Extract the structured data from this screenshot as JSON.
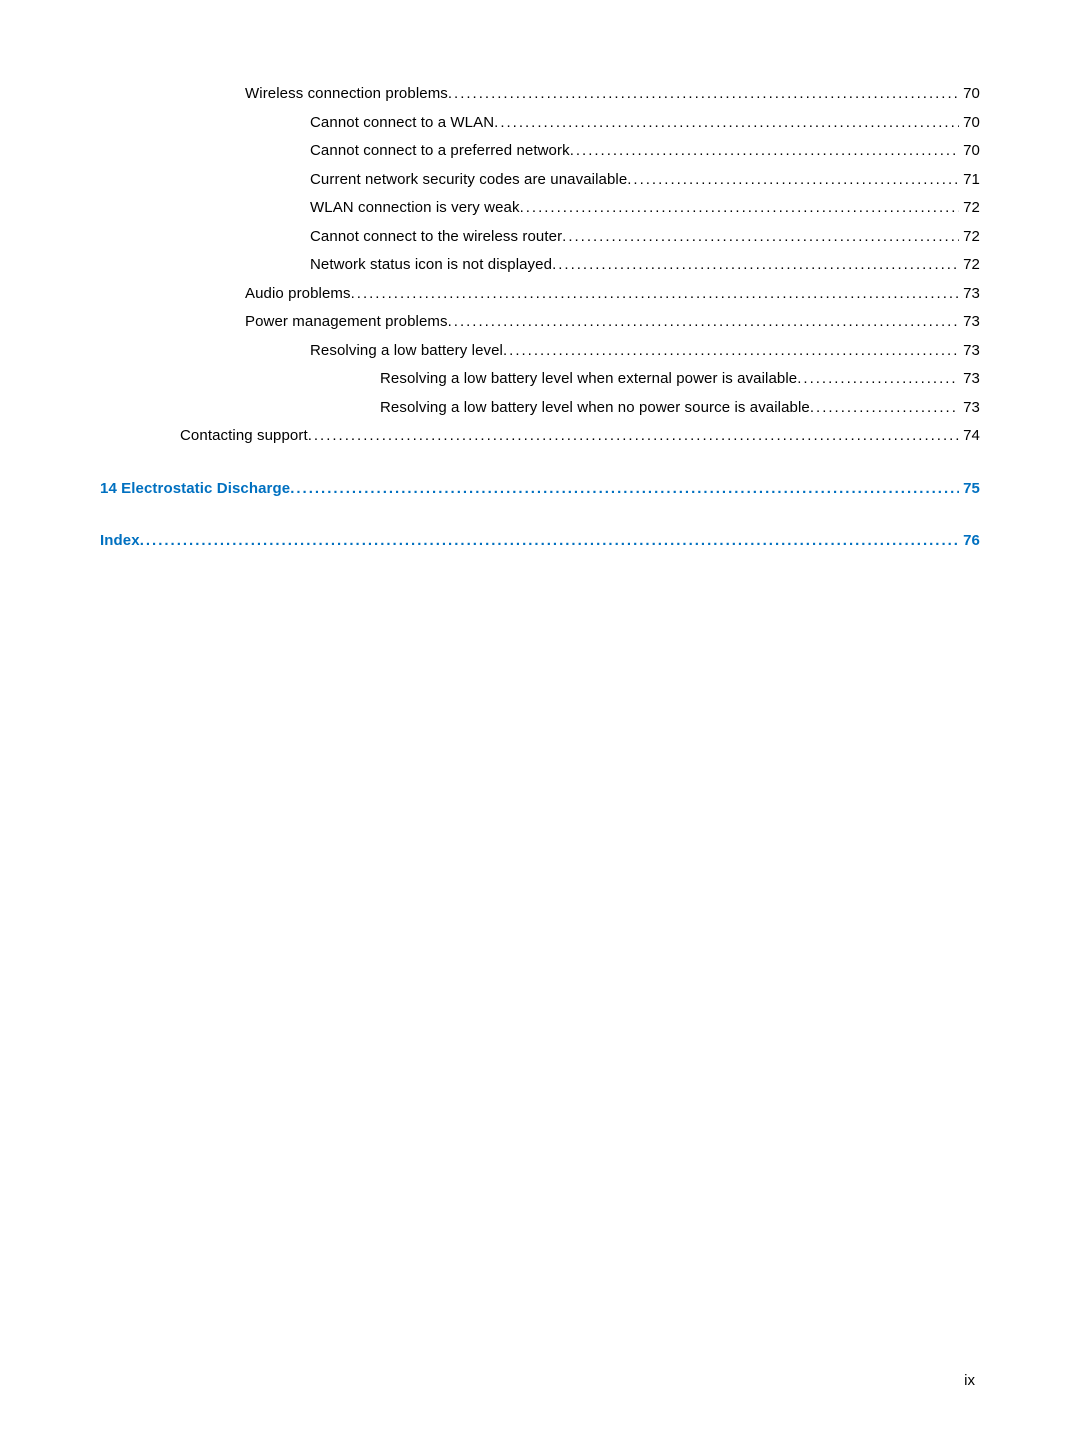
{
  "entries": [
    {
      "text": "Wireless connection problems",
      "page": "70",
      "indent": 2,
      "link": false,
      "dots": true,
      "bold": false
    },
    {
      "text": "Cannot connect to a WLAN",
      "page": "70",
      "indent": 3,
      "link": false,
      "dots": true,
      "bold": false
    },
    {
      "text": "Cannot connect to a preferred network",
      "page": "70",
      "indent": 3,
      "link": false,
      "dots": true,
      "bold": false
    },
    {
      "text": "Current network security codes are unavailable",
      "page": "71",
      "indent": 3,
      "link": false,
      "dots": true,
      "bold": false
    },
    {
      "text": "WLAN connection is very weak",
      "page": "72",
      "indent": 3,
      "link": false,
      "dots": true,
      "bold": false
    },
    {
      "text": "Cannot connect to the wireless router",
      "page": "72",
      "indent": 3,
      "link": false,
      "dots": true,
      "bold": false
    },
    {
      "text": "Network status icon is not displayed",
      "page": "72",
      "indent": 3,
      "link": false,
      "dots": true,
      "bold": false
    },
    {
      "text": "Audio problems",
      "page": "73",
      "indent": 2,
      "link": false,
      "dots": true,
      "bold": false
    },
    {
      "text": "Power management problems",
      "page": "73",
      "indent": 2,
      "link": false,
      "dots": true,
      "bold": false
    },
    {
      "text": "Resolving a low battery level",
      "page": "73",
      "indent": 3,
      "link": false,
      "dots": true,
      "bold": false
    },
    {
      "text": "Resolving a low battery level when external power is available",
      "page": "73",
      "indent": 4,
      "link": false,
      "dots": true,
      "bold": false
    },
    {
      "text": "Resolving a low battery level when no power source is available",
      "page": "73",
      "indent": 4,
      "link": false,
      "dots": true,
      "bold": false
    },
    {
      "text": "Contacting support",
      "page": "74",
      "indent": 1,
      "link": false,
      "dots": true,
      "bold": false
    }
  ],
  "sections": [
    {
      "text": "14  Electrostatic Discharge",
      "page": "75",
      "link": true,
      "dots": true,
      "bold": true
    },
    {
      "text": "Index",
      "page": "76",
      "link": true,
      "dots": true,
      "bold": true
    }
  ],
  "page_number": "ix",
  "colors": {
    "text": "#000000",
    "link": "#0070c0",
    "background": "#ffffff"
  },
  "fontsize_pt": 11
}
